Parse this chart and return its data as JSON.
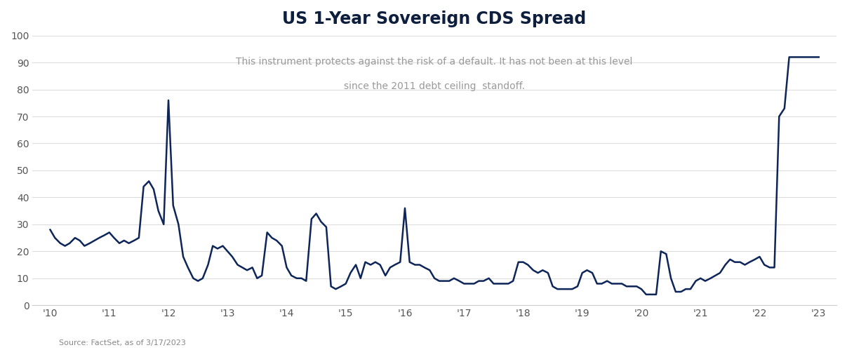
{
  "title": "US 1-Year Sovereign CDS Spread",
  "subtitle_line1": "This instrument protects against the risk of a default. It has not been at this level",
  "subtitle_line2": "since the 2011 debt ceiling  standoff.",
  "source": "Source: FactSet, as of 3/17/2023",
  "line_color": "#0d2558",
  "background_color": "#ffffff",
  "ylim": [
    0,
    100
  ],
  "yticks": [
    0,
    10,
    20,
    30,
    40,
    50,
    60,
    70,
    80,
    90,
    100
  ],
  "xtick_labels": [
    "'10",
    "'11",
    "'12",
    "'13",
    "'14",
    "'15",
    "'16",
    "'17",
    "'18",
    "'19",
    "'20",
    "'21",
    "'22",
    "'23"
  ],
  "x": [
    0.0,
    0.08,
    0.17,
    0.25,
    0.33,
    0.42,
    0.5,
    0.58,
    0.67,
    0.75,
    0.83,
    0.92,
    1.0,
    1.08,
    1.17,
    1.25,
    1.33,
    1.42,
    1.5,
    1.58,
    1.67,
    1.75,
    1.83,
    1.92,
    2.0,
    2.08,
    2.17,
    2.25,
    2.33,
    2.42,
    2.5,
    2.58,
    2.67,
    2.75,
    2.83,
    2.92,
    3.0,
    3.08,
    3.17,
    3.25,
    3.33,
    3.42,
    3.5,
    3.58,
    3.67,
    3.75,
    3.83,
    3.92,
    4.0,
    4.08,
    4.17,
    4.25,
    4.33,
    4.42,
    4.5,
    4.58,
    4.67,
    4.75,
    4.83,
    4.92,
    5.0,
    5.08,
    5.17,
    5.25,
    5.33,
    5.42,
    5.5,
    5.58,
    5.67,
    5.75,
    5.83,
    5.92,
    6.0,
    6.08,
    6.17,
    6.25,
    6.33,
    6.42,
    6.5,
    6.58,
    6.67,
    6.75,
    6.83,
    6.92,
    7.0,
    7.08,
    7.17,
    7.25,
    7.33,
    7.42,
    7.5,
    7.58,
    7.67,
    7.75,
    7.83,
    7.92,
    8.0,
    8.08,
    8.17,
    8.25,
    8.33,
    8.42,
    8.5,
    8.58,
    8.67,
    8.75,
    8.83,
    8.92,
    9.0,
    9.08,
    9.17,
    9.25,
    9.33,
    9.42,
    9.5,
    9.58,
    9.67,
    9.75,
    9.83,
    9.92,
    10.0,
    10.08,
    10.17,
    10.25,
    10.33,
    10.42,
    10.5,
    10.58,
    10.67,
    10.75,
    10.83,
    10.92,
    11.0,
    11.08,
    11.17,
    11.25,
    11.33,
    11.42,
    11.5,
    11.58,
    11.67,
    11.75,
    11.83,
    11.92,
    12.0,
    12.08,
    12.17,
    12.25,
    12.33,
    12.42,
    12.5,
    12.6,
    12.7,
    12.8,
    12.9,
    13.0
  ],
  "y": [
    28,
    25,
    23,
    22,
    23,
    25,
    24,
    22,
    23,
    24,
    25,
    26,
    27,
    25,
    23,
    24,
    23,
    24,
    25,
    44,
    46,
    43,
    35,
    30,
    76,
    37,
    30,
    18,
    14,
    10,
    9,
    10,
    15,
    22,
    21,
    22,
    20,
    18,
    15,
    14,
    13,
    14,
    10,
    11,
    27,
    25,
    24,
    22,
    14,
    11,
    10,
    10,
    9,
    32,
    34,
    31,
    29,
    7,
    6,
    7,
    8,
    12,
    15,
    10,
    16,
    15,
    16,
    15,
    11,
    14,
    15,
    16,
    36,
    16,
    15,
    15,
    14,
    13,
    10,
    9,
    9,
    9,
    10,
    9,
    8,
    8,
    8,
    9,
    9,
    10,
    8,
    8,
    8,
    8,
    9,
    16,
    16,
    15,
    13,
    12,
    13,
    12,
    7,
    6,
    6,
    6,
    6,
    7,
    12,
    13,
    12,
    8,
    8,
    9,
    8,
    8,
    8,
    7,
    7,
    7,
    6,
    4,
    4,
    4,
    20,
    19,
    10,
    5,
    5,
    6,
    6,
    9,
    10,
    9,
    10,
    11,
    12,
    15,
    17,
    16,
    16,
    15,
    16,
    17,
    18,
    15,
    14,
    14,
    70,
    73,
    92,
    92,
    92,
    92,
    92,
    92
  ]
}
